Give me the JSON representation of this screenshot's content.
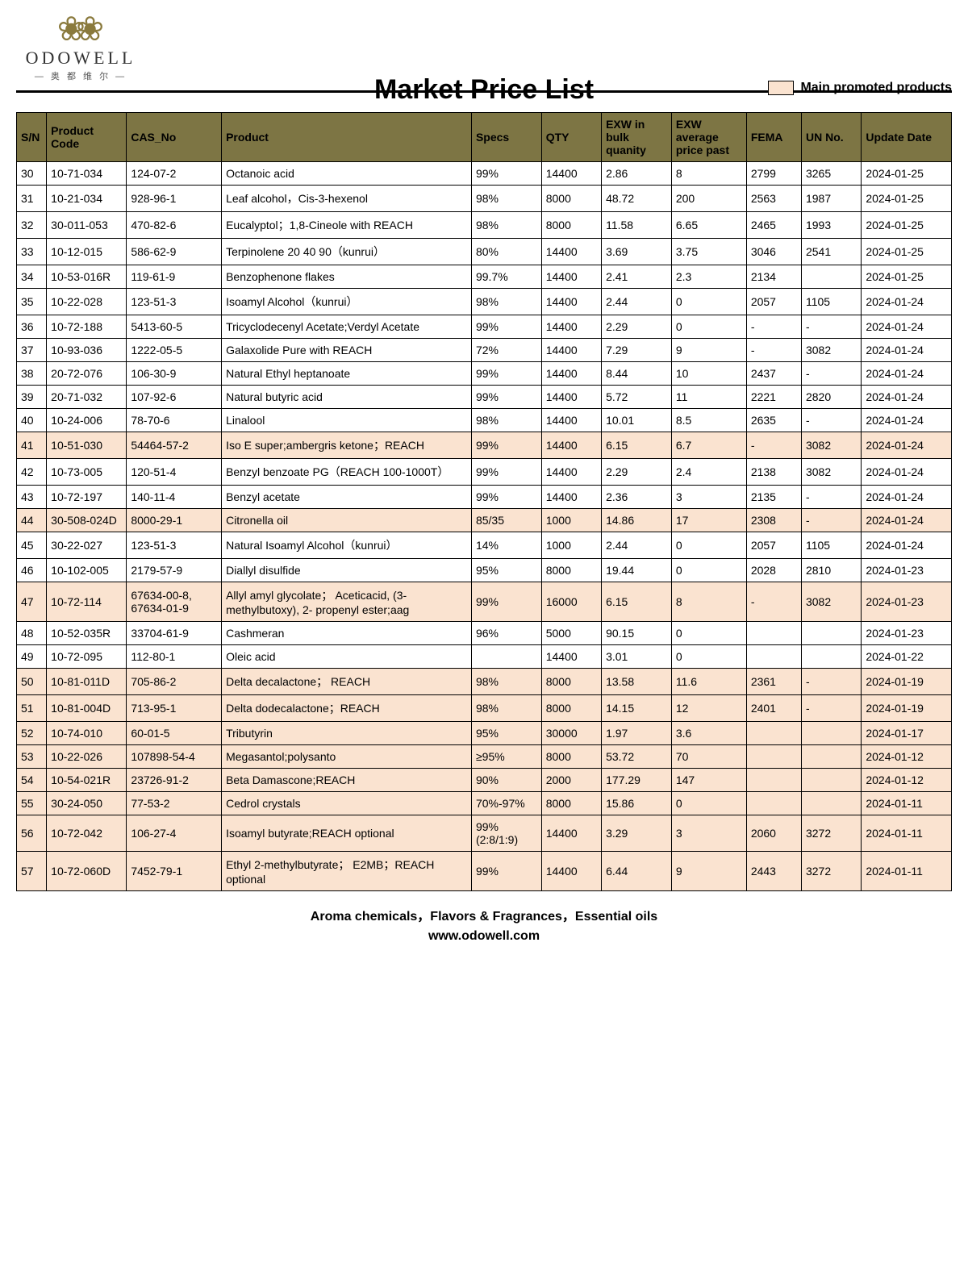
{
  "brand": {
    "name": "ODOWELL",
    "sub": "— 奥 都 维 尔 —"
  },
  "title": "Market Price List",
  "legend_label": "Main promoted products",
  "footer_line1": "Aroma chemicals，Flavors & Fragrances，Essential oils",
  "footer_line2": "www.odowell.com",
  "colors": {
    "header_bg": "#7d7544",
    "promoted_bg": "#fae3d0",
    "border": "#000000"
  },
  "columns": [
    "S/N",
    "Product Code",
    "CAS_No",
    "Product",
    "Specs",
    "QTY",
    "EXW in bulk quanity",
    "EXW average price past",
    "FEMA",
    "UN No.",
    "Update Date"
  ],
  "rows": [
    {
      "sn": "30",
      "code": "10-71-034",
      "cas": "124-07-2",
      "product": "Octanoic acid",
      "specs": "99%",
      "qty": "14400",
      "bulk": "2.86",
      "avg": "8",
      "fema": "2799",
      "un": "3265",
      "date": "2024-01-25",
      "promoted": false
    },
    {
      "sn": "31",
      "code": "10-21-034",
      "cas": "928-96-1",
      "product": "Leaf alcohol，Cis-3-hexenol",
      "specs": "98%",
      "qty": "8000",
      "bulk": "48.72",
      "avg": "200",
      "fema": "2563",
      "un": "1987",
      "date": "2024-01-25",
      "promoted": false
    },
    {
      "sn": "32",
      "code": "30-011-053",
      "cas": "470-82-6",
      "product": "Eucalyptol；1,8-Cineole with REACH",
      "specs": "98%",
      "qty": "8000",
      "bulk": "11.58",
      "avg": "6.65",
      "fema": "2465",
      "un": "1993",
      "date": "2024-01-25",
      "promoted": false
    },
    {
      "sn": "33",
      "code": "10-12-015",
      "cas": "586-62-9",
      "product": "Terpinolene 20 40 90（kunrui）",
      "specs": "80%",
      "qty": "14400",
      "bulk": "3.69",
      "avg": "3.75",
      "fema": "3046",
      "un": "2541",
      "date": "2024-01-25",
      "promoted": false
    },
    {
      "sn": "34",
      "code": "10-53-016R",
      "cas": "119-61-9",
      "product": "Benzophenone flakes",
      "specs": "99.7%",
      "qty": "14400",
      "bulk": "2.41",
      "avg": "2.3",
      "fema": "2134",
      "un": "",
      "date": "2024-01-25",
      "promoted": false
    },
    {
      "sn": "35",
      "code": "10-22-028",
      "cas": "123-51-3",
      "product": "Isoamyl Alcohol（kunrui）",
      "specs": "98%",
      "qty": "14400",
      "bulk": "2.44",
      "avg": "0",
      "fema": "2057",
      "un": "1105",
      "date": "2024-01-24",
      "promoted": false
    },
    {
      "sn": "36",
      "code": "10-72-188",
      "cas": "5413-60-5",
      "product": "Tricyclodecenyl Acetate;Verdyl Acetate",
      "specs": "99%",
      "qty": "14400",
      "bulk": "2.29",
      "avg": "0",
      "fema": "-",
      "un": "-",
      "date": "2024-01-24",
      "promoted": false
    },
    {
      "sn": "37",
      "code": "10-93-036",
      "cas": "1222-05-5",
      "product": "Galaxolide Pure with REACH",
      "specs": "72%",
      "qty": "14400",
      "bulk": "7.29",
      "avg": "9",
      "fema": "-",
      "un": "3082",
      "date": "2024-01-24",
      "promoted": false
    },
    {
      "sn": "38",
      "code": "20-72-076",
      "cas": "106-30-9",
      "product": "Natural Ethyl heptanoate",
      "specs": "99%",
      "qty": "14400",
      "bulk": "8.44",
      "avg": "10",
      "fema": "2437",
      "un": "-",
      "date": "2024-01-24",
      "promoted": false
    },
    {
      "sn": "39",
      "code": "20-71-032",
      "cas": "107-92-6",
      "product": "Natural butyric acid",
      "specs": "99%",
      "qty": "14400",
      "bulk": "5.72",
      "avg": "11",
      "fema": "2221",
      "un": "2820",
      "date": "2024-01-24",
      "promoted": false
    },
    {
      "sn": "40",
      "code": "10-24-006",
      "cas": "78-70-6",
      "product": "Linalool",
      "specs": "98%",
      "qty": "14400",
      "bulk": "10.01",
      "avg": "8.5",
      "fema": "2635",
      "un": "-",
      "date": "2024-01-24",
      "promoted": false
    },
    {
      "sn": "41",
      "code": "10-51-030",
      "cas": "54464-57-2",
      "product": "Iso E super;ambergris ketone；REACH",
      "specs": "99%",
      "qty": "14400",
      "bulk": "6.15",
      "avg": "6.7",
      "fema": "-",
      "un": "3082",
      "date": "2024-01-24",
      "promoted": true
    },
    {
      "sn": "42",
      "code": "10-73-005",
      "cas": "120-51-4",
      "product": "Benzyl benzoate PG（REACH 100-1000T）",
      "specs": "99%",
      "qty": "14400",
      "bulk": "2.29",
      "avg": "2.4",
      "fema": "2138",
      "un": "3082",
      "date": "2024-01-24",
      "promoted": false
    },
    {
      "sn": "43",
      "code": "10-72-197",
      "cas": "140-11-4",
      "product": "Benzyl acetate",
      "specs": "99%",
      "qty": "14400",
      "bulk": "2.36",
      "avg": "3",
      "fema": "2135",
      "un": "-",
      "date": "2024-01-24",
      "promoted": false
    },
    {
      "sn": "44",
      "code": "30-508-024D",
      "cas": "8000-29-1",
      "product": "Citronella oil",
      "specs": "85/35",
      "qty": "1000",
      "bulk": "14.86",
      "avg": "17",
      "fema": "2308",
      "un": "-",
      "date": "2024-01-24",
      "promoted": true
    },
    {
      "sn": "45",
      "code": "30-22-027",
      "cas": "123-51-3",
      "product": "Natural Isoamyl Alcohol（kunrui）",
      "specs": "14%",
      "qty": "1000",
      "bulk": "2.44",
      "avg": "0",
      "fema": "2057",
      "un": "1105",
      "date": "2024-01-24",
      "promoted": false
    },
    {
      "sn": "46",
      "code": "10-102-005",
      "cas": "2179-57-9",
      "product": "Diallyl disulfide",
      "specs": "95%",
      "qty": "8000",
      "bulk": "19.44",
      "avg": "0",
      "fema": "2028",
      "un": "2810",
      "date": "2024-01-23",
      "promoted": false
    },
    {
      "sn": "47",
      "code": "10-72-114",
      "cas": "67634-00-8, 67634-01-9",
      "product": "Allyl amyl glycolate； Aceticacid, (3-methylbutoxy), 2- propenyl ester;aag",
      "specs": "99%",
      "qty": "16000",
      "bulk": "6.15",
      "avg": "8",
      "fema": "-",
      "un": "3082",
      "date": "2024-01-23",
      "promoted": true
    },
    {
      "sn": "48",
      "code": "10-52-035R",
      "cas": "33704-61-9",
      "product": "Cashmeran",
      "specs": "96%",
      "qty": "5000",
      "bulk": "90.15",
      "avg": "0",
      "fema": "",
      "un": "",
      "date": "2024-01-23",
      "promoted": false
    },
    {
      "sn": "49",
      "code": "10-72-095",
      "cas": "112-80-1",
      "product": "Oleic acid",
      "specs": "",
      "qty": "14400",
      "bulk": "3.01",
      "avg": "0",
      "fema": "",
      "un": "",
      "date": "2024-01-22",
      "promoted": false
    },
    {
      "sn": "50",
      "code": "10-81-011D",
      "cas": "705-86-2",
      "product": "Delta decalactone； REACH",
      "specs": "98%",
      "qty": "8000",
      "bulk": "13.58",
      "avg": "11.6",
      "fema": "2361",
      "un": "-",
      "date": "2024-01-19",
      "promoted": true
    },
    {
      "sn": "51",
      "code": "10-81-004D",
      "cas": "713-95-1",
      "product": "Delta dodecalactone；REACH",
      "specs": "98%",
      "qty": "8000",
      "bulk": "14.15",
      "avg": "12",
      "fema": "2401",
      "un": "-",
      "date": "2024-01-19",
      "promoted": true
    },
    {
      "sn": "52",
      "code": "10-74-010",
      "cas": "60-01-5",
      "product": "Tributyrin",
      "specs": "95%",
      "qty": "30000",
      "bulk": "1.97",
      "avg": "3.6",
      "fema": "",
      "un": "",
      "date": "2024-01-17",
      "promoted": true
    },
    {
      "sn": "53",
      "code": "10-22-026",
      "cas": "107898-54-4",
      "product": "Megasantol;polysanto",
      "specs": "≥95%",
      "qty": "8000",
      "bulk": "53.72",
      "avg": "70",
      "fema": "",
      "un": "",
      "date": "2024-01-12",
      "promoted": true
    },
    {
      "sn": "54",
      "code": "10-54-021R",
      "cas": "23726-91-2",
      "product": "Beta Damascone;REACH",
      "specs": "90%",
      "qty": "2000",
      "bulk": "177.29",
      "avg": "147",
      "fema": "",
      "un": "",
      "date": "2024-01-12",
      "promoted": true
    },
    {
      "sn": "55",
      "code": "30-24-050",
      "cas": "77-53-2",
      "product": "Cedrol crystals",
      "specs": "70%-97%",
      "qty": "8000",
      "bulk": "15.86",
      "avg": "0",
      "fema": "",
      "un": "",
      "date": "2024-01-11",
      "promoted": true
    },
    {
      "sn": "56",
      "code": "10-72-042",
      "cas": "106-27-4",
      "product": "Isoamyl butyrate;REACH optional",
      "specs": "99%(2:8/1:9)",
      "qty": "14400",
      "bulk": "3.29",
      "avg": "3",
      "fema": "2060",
      "un": "3272",
      "date": "2024-01-11",
      "promoted": true
    },
    {
      "sn": "57",
      "code": "10-72-060D",
      "cas": "7452-79-1",
      "product": "Ethyl 2-methylbutyrate； E2MB；REACH optional",
      "specs": "99%",
      "qty": "14400",
      "bulk": "6.44",
      "avg": "9",
      "fema": "2443",
      "un": "3272",
      "date": "2024-01-11",
      "promoted": true
    }
  ]
}
